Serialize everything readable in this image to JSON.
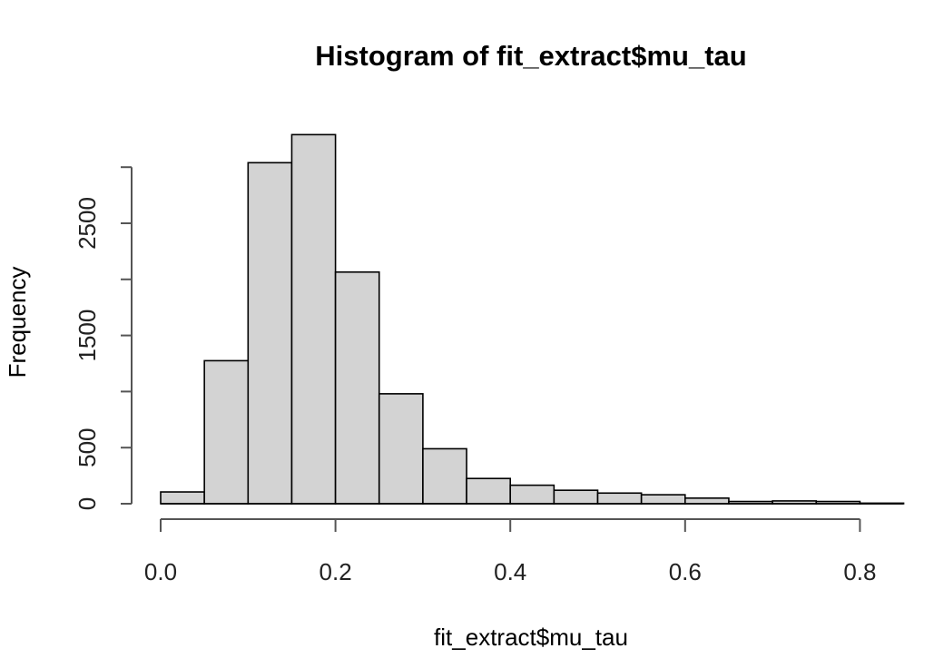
{
  "chart_data": {
    "type": "bar",
    "title": "Histogram of fit_extract$mu_tau",
    "xlabel": "fit_extract$mu_tau",
    "ylabel": "Frequency",
    "bin_width": 0.05,
    "x": [
      0.0,
      0.05,
      0.1,
      0.15,
      0.2,
      0.25,
      0.3,
      0.35,
      0.4,
      0.45,
      0.5,
      0.55,
      0.6,
      0.65,
      0.7,
      0.75,
      0.8
    ],
    "values": [
      105,
      1275,
      3040,
      3290,
      2065,
      980,
      490,
      225,
      165,
      120,
      95,
      80,
      50,
      20,
      25,
      20,
      5
    ],
    "xlim": [
      0.0,
      0.85
    ],
    "ylim": [
      0,
      3000
    ],
    "x_ticks": [
      0.0,
      0.2,
      0.4,
      0.6,
      0.8
    ],
    "x_tick_labels": [
      "0.0",
      "0.2",
      "0.4",
      "0.6",
      "0.8"
    ],
    "y_ticks": [
      0,
      500,
      1000,
      1500,
      2000,
      2500,
      3000
    ],
    "y_tick_labels": [
      "0",
      "500",
      "",
      "1500",
      "",
      "2500",
      ""
    ],
    "grid": false,
    "colors": {
      "bar_fill": "#d3d3d3",
      "bar_stroke": "#000000",
      "axis": "#555555"
    }
  }
}
